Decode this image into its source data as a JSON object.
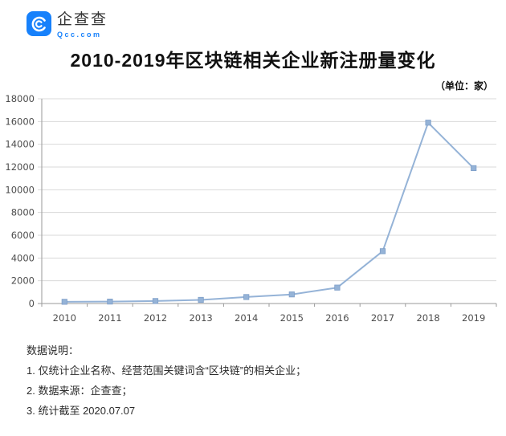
{
  "header": {
    "brand_cn": "企查查",
    "brand_domain": "Qcc.com",
    "brand_color": "#1781fb"
  },
  "title": "2010-2019年区块链相关企业新注册量变化",
  "unit_label": "（单位：家）",
  "chart_data": {
    "type": "line",
    "title": "2010-2019年区块链相关企业新注册量变化",
    "categories": [
      "2010",
      "2011",
      "2012",
      "2013",
      "2014",
      "2015",
      "2016",
      "2017",
      "2018",
      "2019"
    ],
    "values": [
      150,
      170,
      220,
      320,
      570,
      800,
      1400,
      4600,
      15900,
      11900
    ],
    "xlabel": "",
    "ylabel": "",
    "unit": "家",
    "ylim": [
      0,
      18000
    ],
    "ytick_step": 2000,
    "grid": true,
    "legend": "none",
    "line_color": "#95b3d7",
    "marker": "square",
    "marker_color": "#95b3d7",
    "gridline_color": "#d9d9d9",
    "axis_color": "#9a9a9a",
    "tick_label_color": "#4d4d4d"
  },
  "footer": {
    "heading": "数据说明：",
    "notes": [
      "1. 仅统计企业名称、经营范围关键词含“区块链”的相关企业；",
      "2. 数据来源：企查查；",
      "3. 统计截至 2020.07.07"
    ]
  }
}
